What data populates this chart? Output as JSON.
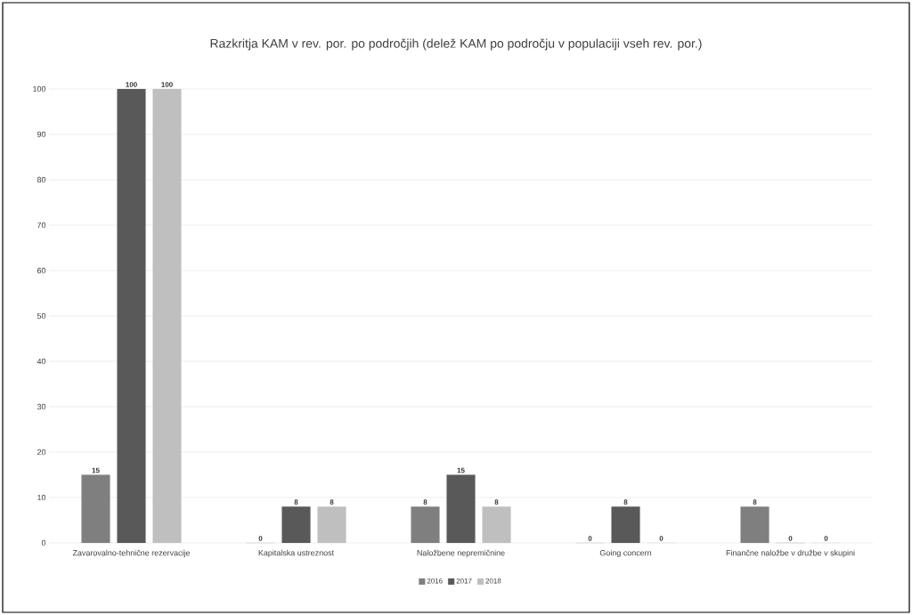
{
  "chart_data": {
    "type": "bar",
    "title": "Razkritja KAM v rev. por. po področjih (delež KAM po področju v populaciji vseh rev. por.)",
    "categories": [
      "Zavarovalno-tehnične rezervacije",
      "Kapitalska ustreznost",
      "Naložbene nepremičnine",
      "Going concern",
      "Finančne naložbe v družbe v skupini"
    ],
    "series": [
      {
        "name": "2016",
        "color": "#7f7f7f",
        "values": [
          15,
          0,
          8,
          0,
          8
        ]
      },
      {
        "name": "2017",
        "color": "#595959",
        "values": [
          100,
          8,
          15,
          8,
          0
        ]
      },
      {
        "name": "2018",
        "color": "#bfbfbf",
        "values": [
          100,
          8,
          8,
          0,
          0
        ]
      }
    ],
    "ylim": [
      0,
      100
    ],
    "yticks": [
      0,
      10,
      20,
      30,
      40,
      50,
      60,
      70,
      80,
      90,
      100
    ],
    "grid": "y",
    "legend": "bottom",
    "data_labels": true
  }
}
